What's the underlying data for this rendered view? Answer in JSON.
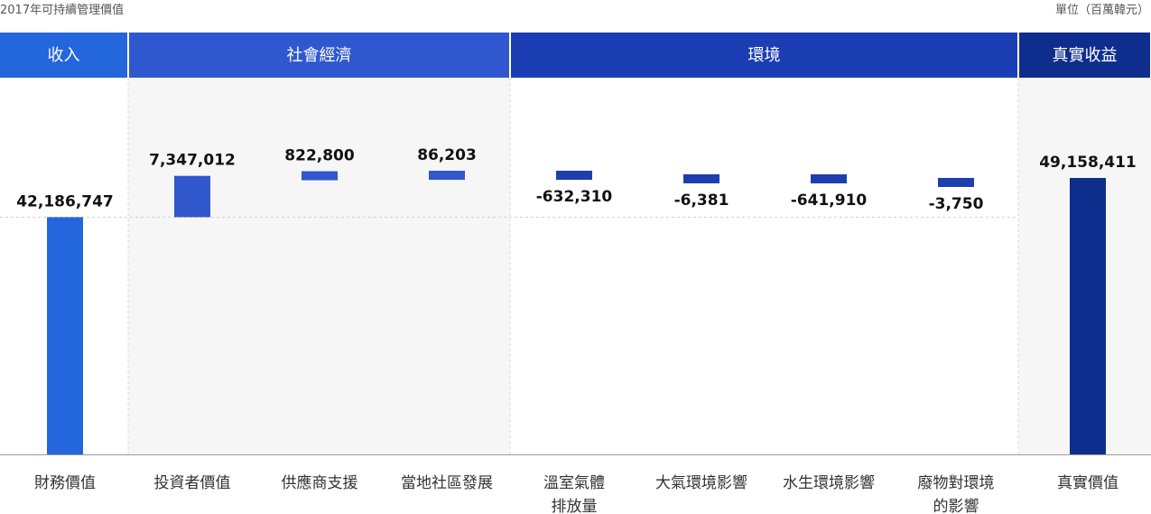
{
  "header": {
    "title": "2017年可持續管理價值",
    "unit": "單位（百萬韓元）"
  },
  "groups": [
    {
      "label": "收入",
      "color": "#2466dc"
    },
    {
      "label": "社會經濟",
      "color": "#2f58d0"
    },
    {
      "label": "環境",
      "color": "#1c3eb4"
    },
    {
      "label": "真實收益",
      "color": "#0f2d8c"
    }
  ],
  "chart_data": {
    "type": "bar",
    "subtype": "waterfall",
    "categories": [
      [
        "財務價值"
      ],
      [
        "投資者價值"
      ],
      [
        "供應商支援"
      ],
      [
        "當地社區發展"
      ],
      [
        "溫室氣體",
        "排放量"
      ],
      [
        "大氣環境影響"
      ],
      [
        "水生環境影響"
      ],
      [
        "廢物對環境",
        "的影響"
      ],
      [
        "真實價值"
      ]
    ],
    "values": [
      42186747,
      7347012,
      822800,
      86203,
      -632310,
      -6381,
      -641910,
      -3750,
      49158411
    ],
    "labels": [
      "42,186,747",
      "7,347,012",
      "822,800",
      "86,203",
      "-632,310",
      "-6,381",
      "-641,910",
      "-3,750",
      "49,158,411"
    ],
    "group_of": [
      0,
      1,
      1,
      1,
      2,
      2,
      2,
      2,
      3
    ],
    "bar_colors": [
      "#2466dc",
      "#3157cc",
      "#3157cc",
      "#3157cc",
      "#1c3eaf",
      "#1c3eaf",
      "#1c3eaf",
      "#1c3eaf",
      "#0f2d8c"
    ],
    "ylim": [
      0,
      49158411
    ],
    "grid": false
  }
}
